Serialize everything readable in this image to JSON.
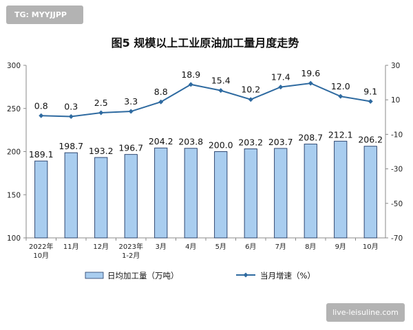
{
  "watermark": {
    "top_left": "TG: MYYJJPP",
    "bottom_right": "live-leisuline.com"
  },
  "chart_data": {
    "type": "bar",
    "title": "图5  规模以上工业原油加工量月度走势",
    "categories": [
      [
        "2022年",
        "10月"
      ],
      [
        "11月"
      ],
      [
        "12月"
      ],
      [
        "2023年",
        "1-2月"
      ],
      [
        "3月"
      ],
      [
        "4月"
      ],
      [
        "5月"
      ],
      [
        "6月"
      ],
      [
        "7月"
      ],
      [
        "8月"
      ],
      [
        "9月"
      ],
      [
        "10月"
      ]
    ],
    "series": [
      {
        "name": "日均加工量（万吨）",
        "type": "bar",
        "axis": "left",
        "values": [
          189.1,
          198.7,
          193.2,
          196.7,
          204.2,
          203.8,
          200.0,
          203.2,
          203.7,
          208.7,
          212.1,
          206.2
        ],
        "labels": [
          "189.1",
          "198.7",
          "193.2",
          "196.7",
          "204.2",
          "203.8",
          "200.0",
          "203.2",
          "203.7",
          "208.7",
          "212.1",
          "206.2"
        ],
        "color": "#a9cdef",
        "border": "#1f3864"
      },
      {
        "name": "当月增速（%）",
        "type": "line",
        "axis": "right",
        "values": [
          0.8,
          0.3,
          2.5,
          3.3,
          8.8,
          18.9,
          15.4,
          10.2,
          17.4,
          19.6,
          12.0,
          9.1
        ],
        "labels": [
          "0.8",
          "0.3",
          "2.5",
          "3.3",
          "8.8",
          "18.9",
          "15.4",
          "10.2",
          "17.4",
          "19.6",
          "12.0",
          "9.1"
        ],
        "color": "#2e6aa0"
      }
    ],
    "y_left": {
      "min": 100,
      "max": 300,
      "ticks": [
        "100",
        "150",
        "200",
        "250",
        "300"
      ]
    },
    "y_right": {
      "min": -70,
      "max": 30,
      "ticks": [
        "-70",
        "-50",
        "-30",
        "-10",
        "10",
        "30"
      ]
    },
    "grid": false,
    "legend_position": "bottom"
  }
}
